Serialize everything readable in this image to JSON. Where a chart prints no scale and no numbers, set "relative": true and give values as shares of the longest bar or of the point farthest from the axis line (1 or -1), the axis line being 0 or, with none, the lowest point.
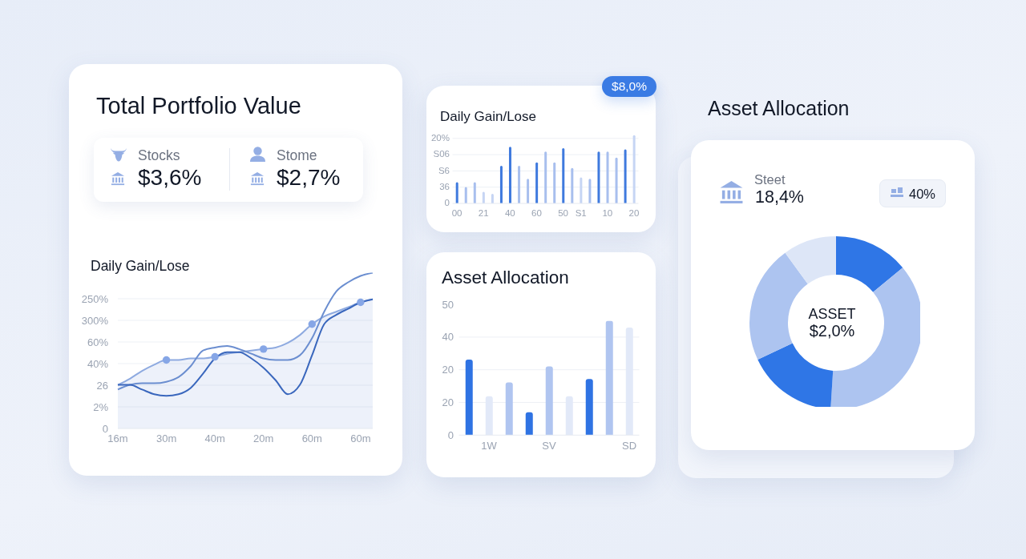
{
  "chart_data": [
    {
      "type": "other",
      "title": "Total Portfolio Value",
      "annotations": [
        "Stocks",
        "$3,6%",
        "Stome",
        "$2,7%"
      ]
    },
    {
      "type": "line",
      "title": "Daily Gain/Lose",
      "relative": true,
      "annotations": [
        "250%",
        "300%",
        "60%",
        "40%",
        "26",
        "2%",
        "0"
      ],
      "categories": [
        "16m",
        null,
        null,
        null,
        "30m",
        null,
        null,
        null,
        "40m",
        null,
        null,
        null,
        "20m",
        null,
        null,
        null,
        "60m",
        null,
        null,
        null,
        "60m",
        null
      ],
      "grid": "y",
      "series": [
        {
          "type": "area",
          "color": "#8eaae0",
          "values": [
            0.28,
            0.32,
            0.37,
            0.41,
            0.44,
            0.44,
            0.45,
            0.45,
            0.46,
            0.48,
            0.49,
            0.5,
            0.51,
            0.52,
            0.55,
            0.6,
            0.67,
            0.72,
            0.75,
            0.78,
            0.81,
            0.83
          ]
        },
        {
          "color": "#6b8ed0",
          "values": [
            0.25,
            0.28,
            0.29,
            0.29,
            0.3,
            0.33,
            0.4,
            0.5,
            0.52,
            0.53,
            0.51,
            0.48,
            0.45,
            0.44,
            0.44,
            0.47,
            0.58,
            0.75,
            0.88,
            0.94,
            0.98,
            1
          ]
        },
        {
          "color": "#3a67bd",
          "values": [
            0.28,
            0.28,
            0.25,
            0.22,
            0.21,
            0.22,
            0.26,
            0.35,
            0.45,
            0.49,
            0.49,
            0.45,
            0.39,
            0.31,
            0.22,
            0.28,
            0.47,
            0.67,
            0.73,
            0.77,
            0.81,
            0.83
          ]
        },
        {
          "type": "scatter",
          "color": "#86a6e6",
          "marker": "circle",
          "values": [
            null,
            null,
            null,
            null,
            0.44,
            null,
            null,
            null,
            0.46,
            null,
            null,
            null,
            0.51,
            null,
            null,
            null,
            0.67,
            null,
            null,
            null,
            0.81,
            null
          ]
        }
      ]
    },
    {
      "type": "bar",
      "title": "Daily Gain/Lose",
      "relative": true,
      "annotations": [
        "$8,0%",
        "20%",
        "S06",
        "S6",
        "36",
        "0"
      ],
      "categories": [
        "00",
        null,
        null,
        "21",
        null,
        null,
        "40",
        null,
        null,
        "60",
        null,
        null,
        "50",
        null,
        "S1",
        null,
        null,
        "10",
        null,
        null,
        "20"
      ],
      "values": [
        0.31,
        0.24,
        0.31,
        0.17,
        0.14,
        0.55,
        0.83,
        0.55,
        0.36,
        0.6,
        0.76,
        0.6,
        0.81,
        0.52,
        0.38,
        0.36,
        0.76,
        0.76,
        0.67,
        0.79,
        1
      ],
      "colors": [
        "#3f7ade",
        "#a8bfee",
        "#a8bfee",
        "#c6d5f4",
        "#c6d5f4",
        "#3f7ade",
        "#3f7ade",
        "#a8bfee",
        "#a8bfee",
        "#3f7ade",
        "#a8bfee",
        "#a8bfee",
        "#3f7ade",
        "#a8bfee",
        "#c6d5f4",
        "#a8bfee",
        "#3f7ade",
        "#a8bfee",
        "#a8bfee",
        "#3f7ade",
        "#c6d5f4"
      ],
      "grid": "y"
    },
    {
      "type": "bar",
      "title": "Asset Allocation",
      "relative": true,
      "annotations": [
        "50",
        "40",
        "20",
        "20",
        "0"
      ],
      "categories": [
        null,
        "1W",
        null,
        null,
        "SV",
        null,
        null,
        null,
        "SD"
      ],
      "values": [
        0.66,
        0.34,
        0.46,
        0.2,
        0.6,
        0.34,
        0.49,
        1,
        0.94
      ],
      "colors": [
        "#2f73e3",
        "#e2e9f8",
        "#b0c5f0",
        "#2f73e3",
        "#b0c5f0",
        "#e2e9f8",
        "#2f73e3",
        "#b0c5f0",
        "#e2e9f8"
      ],
      "grid": "y"
    },
    {
      "type": "donut",
      "title": "Asset Allocation",
      "annotations": [
        "Steet",
        "18,4%",
        "40%",
        "ASSET",
        "$2,0%"
      ],
      "categories": [
        null,
        null,
        null,
        null,
        null
      ],
      "values": [
        14,
        37,
        17,
        22,
        10
      ],
      "colors": [
        "#2f76e6",
        "#adc4f0",
        "#2f76e6",
        "#adc4f0",
        "#dde6f7"
      ]
    }
  ]
}
